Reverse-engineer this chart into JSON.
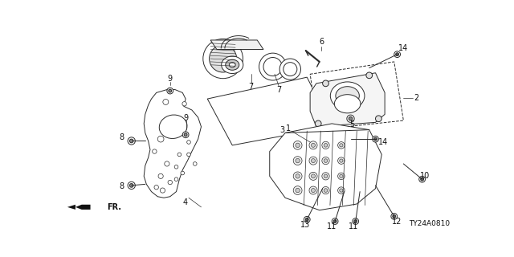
{
  "bg_color": "#ffffff",
  "diagram_code": "TY24A0810",
  "line_color": "#2a2a2a",
  "label_color": "#111111"
}
